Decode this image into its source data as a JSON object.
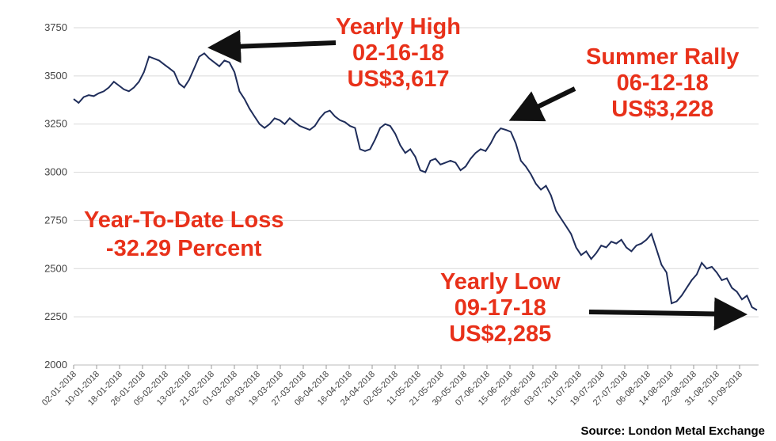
{
  "chart_data": {
    "type": "line",
    "title": "",
    "xlabel": "",
    "ylabel": "",
    "ylim": [
      2000,
      3750
    ],
    "yticks": [
      2000,
      2250,
      2500,
      2750,
      3000,
      3250,
      3500,
      3750
    ],
    "x_tick_labels": [
      "02-01-2018",
      "10-01-2018",
      "18-01-2018",
      "26-01-2018",
      "05-02-2018",
      "13-02-2018",
      "21-02-2018",
      "01-03-2018",
      "09-03-2018",
      "19-03-2018",
      "27-03-2018",
      "06-04-2018",
      "16-04-2018",
      "24-04-2018",
      "02-05-2018",
      "11-05-2018",
      "21-05-2018",
      "30-05-2018",
      "07-06-2018",
      "15-06-2018",
      "25-06-2018",
      "03-07-2018",
      "11-07-2018",
      "19-07-2018",
      "27-07-2018",
      "06-08-2018",
      "14-08-2018",
      "22-08-2018",
      "31-08-2018",
      "10-09-2018"
    ],
    "grid": true,
    "line_color": "#1f2d5a",
    "series": [
      {
        "values": [
          3380,
          3360,
          3390,
          3400,
          3395,
          3410,
          3420,
          3440,
          3470,
          3450,
          3430,
          3420,
          3440,
          3470,
          3520,
          3600,
          3590,
          3580,
          3560,
          3540,
          3520,
          3460,
          3440,
          3480,
          3540,
          3600,
          3617,
          3590,
          3570,
          3550,
          3580,
          3570,
          3520,
          3420,
          3380,
          3330,
          3290,
          3250,
          3230,
          3250,
          3280,
          3270,
          3250,
          3280,
          3260,
          3240,
          3230,
          3220,
          3240,
          3280,
          3310,
          3320,
          3290,
          3270,
          3260,
          3240,
          3230,
          3120,
          3110,
          3120,
          3170,
          3230,
          3250,
          3240,
          3200,
          3140,
          3100,
          3120,
          3080,
          3010,
          3000,
          3060,
          3070,
          3040,
          3050,
          3060,
          3050,
          3010,
          3030,
          3070,
          3100,
          3120,
          3110,
          3150,
          3200,
          3228,
          3220,
          3210,
          3150,
          3060,
          3030,
          2990,
          2940,
          2910,
          2930,
          2880,
          2800,
          2760,
          2720,
          2680,
          2610,
          2570,
          2590,
          2550,
          2580,
          2620,
          2610,
          2640,
          2630,
          2650,
          2610,
          2590,
          2620,
          2630,
          2650,
          2680,
          2600,
          2520,
          2480,
          2320,
          2330,
          2360,
          2400,
          2440,
          2470,
          2530,
          2500,
          2510,
          2480,
          2440,
          2450,
          2400,
          2380,
          2340,
          2360,
          2300,
          2285
        ]
      }
    ]
  },
  "annotations": {
    "high": [
      "Yearly High",
      "02-16-18",
      "US$3,617"
    ],
    "summer": [
      "Summer Rally",
      "06-12-18",
      "US$3,228"
    ],
    "low": [
      "Yearly Low",
      "09-17-18",
      "US$2,285"
    ],
    "ytd": [
      "Year-To-Date Loss",
      "-32.29 Percent"
    ]
  },
  "colors": {
    "annotation": "#e8311a",
    "arrow": "#111111",
    "grid": "#d9d9d9"
  },
  "source": "Source: London Metal Exchange"
}
